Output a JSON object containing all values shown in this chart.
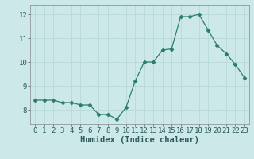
{
  "x": [
    0,
    1,
    2,
    3,
    4,
    5,
    6,
    7,
    8,
    9,
    10,
    11,
    12,
    13,
    14,
    15,
    16,
    17,
    18,
    19,
    20,
    21,
    22,
    23
  ],
  "y": [
    8.4,
    8.4,
    8.4,
    8.3,
    8.3,
    8.2,
    8.2,
    7.8,
    7.8,
    7.6,
    8.1,
    9.2,
    10.0,
    10.0,
    10.5,
    10.55,
    11.9,
    11.9,
    12.0,
    11.35,
    10.7,
    10.35,
    9.9,
    9.35
  ],
  "line_color": "#2a7d6e",
  "marker": "D",
  "marker_size": 2.5,
  "bg_color": "#cce8e8",
  "grid_color": "#b8d8d8",
  "xlabel": "Humidex (Indice chaleur)",
  "ylim": [
    7.4,
    12.4
  ],
  "xlim": [
    -0.5,
    23.5
  ],
  "yticks": [
    8,
    9,
    10,
    11,
    12
  ],
  "xticks": [
    0,
    1,
    2,
    3,
    4,
    5,
    6,
    7,
    8,
    9,
    10,
    11,
    12,
    13,
    14,
    15,
    16,
    17,
    18,
    19,
    20,
    21,
    22,
    23
  ],
  "tick_fontsize": 6.5,
  "label_fontsize": 7.5
}
